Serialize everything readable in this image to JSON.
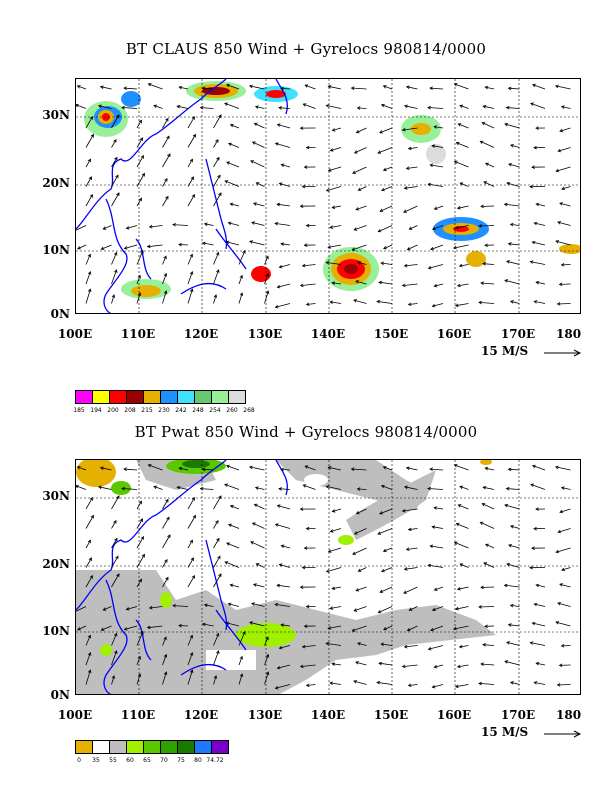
{
  "top_panel": {
    "title": "BT CLAUS 850 Wind + Gyrelocs 980814/0000",
    "y_labels": [
      "30N",
      "20N",
      "10N",
      "0N"
    ],
    "x_labels": [
      "100E",
      "110E",
      "120E",
      "130E",
      "140E",
      "150E",
      "160E",
      "170E",
      "180"
    ],
    "scale_label": "15 M/S",
    "legend": {
      "colors": [
        "#ff00ff",
        "#ffff00",
        "#ff0000",
        "#990000",
        "#e5b000",
        "#1e90ff",
        "#40e0ff",
        "#66c870",
        "#98f098",
        "#dcdcdc"
      ],
      "labels": [
        "185",
        "194",
        "200",
        "208",
        "215",
        "230",
        "242",
        "248",
        "254",
        "260",
        "268"
      ]
    }
  },
  "bottom_panel": {
    "title": "BT Pwat 850 Wind + Gyrelocs 980814/0000",
    "y_labels": [
      "30N",
      "20N",
      "10N",
      "0N"
    ],
    "x_labels": [
      "100E",
      "110E",
      "120E",
      "130E",
      "140E",
      "150E",
      "160E",
      "170E",
      "180"
    ],
    "scale_label": "15 M/S",
    "legend": {
      "colors": [
        "#e5b000",
        "#ffffff",
        "#bebebe",
        "#a0f000",
        "#5ac800",
        "#2ea000",
        "#1a7a00",
        "#1e78ff",
        "#7800c8"
      ],
      "labels": [
        "0",
        "35",
        "55",
        "60",
        "65",
        "70",
        "75",
        "80",
        "74.72"
      ]
    }
  }
}
